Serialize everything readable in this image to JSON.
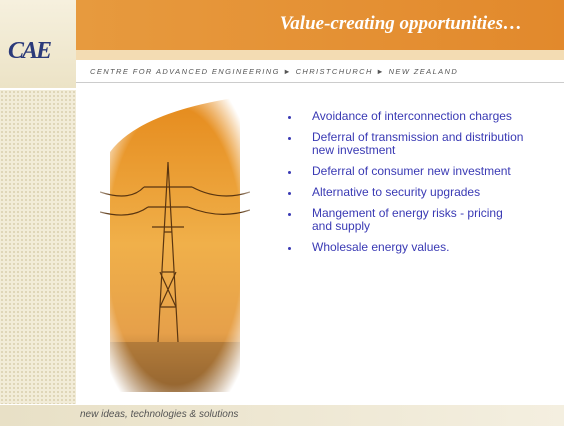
{
  "header": {
    "logo": "CAE",
    "title": "Value-creating opportunities…",
    "subtitle": "CENTRE FOR ADVANCED ENGINEERING ► CHRISTCHURCH ► NEW ZEALAND"
  },
  "bullets": [
    "Avoidance of interconnection charges",
    "Deferral of transmission and distribution new investment",
    "Deferral of consumer new investment",
    "Alternative to security upgrades",
    "Mangement of energy risks - pricing and supply",
    "Wholesale energy values."
  ],
  "footer": {
    "tagline": "new ideas, technologies & solutions"
  }
}
